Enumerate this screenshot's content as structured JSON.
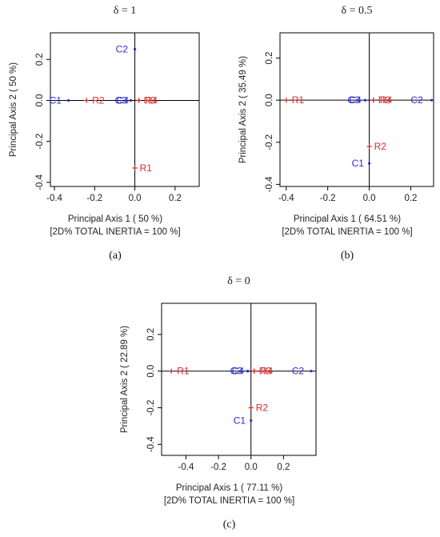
{
  "chart_data": [
    {
      "type": "scatter",
      "title": "δ = 1",
      "panel_label": "(a)",
      "xlabel": "Principal Axis 1 ( 50 %)",
      "xlabel2": "[2D% TOTAL INERTIA =  100 %]",
      "ylabel": "Principal Axis 2 ( 50 %)",
      "xlim": [
        -0.42,
        0.32
      ],
      "ylim": [
        -0.42,
        0.33
      ],
      "xticks": [
        -0.4,
        -0.2,
        0.0,
        0.2
      ],
      "xtick_labels": [
        "-0.4",
        "-0.2",
        "0.0",
        "0.2"
      ],
      "yticks": [
        -0.4,
        -0.2,
        0.0,
        0.2
      ],
      "ytick_labels": [
        "-0.4",
        "-0.2",
        "0.0",
        "0.2"
      ],
      "points": [
        {
          "label": "C1",
          "x": -0.33,
          "y": 0.0,
          "color": "#2b2bd6"
        },
        {
          "label": "C2",
          "x": 0.0,
          "y": 0.25,
          "color": "#2b2bd6"
        },
        {
          "label": "C3",
          "x": -0.02,
          "y": 0.0,
          "color": "#2b2bd6"
        },
        {
          "label": "C4",
          "x": -0.02,
          "y": 0.0,
          "color": "#2b2bd6"
        },
        {
          "label": "R1",
          "x": 0.0,
          "y": -0.33,
          "color": "#d62b2b"
        },
        {
          "label": "R2",
          "x": -0.24,
          "y": 0.0,
          "color": "#d62b2b"
        },
        {
          "label": "R3",
          "x": 0.02,
          "y": 0.0,
          "color": "#d62b2b"
        },
        {
          "label": "R4",
          "x": 0.02,
          "y": 0.0,
          "color": "#d62b2b"
        }
      ]
    },
    {
      "type": "scatter",
      "title": "δ = 0.5",
      "panel_label": "(b)",
      "xlabel": "Principal Axis 1 ( 64.51 %)",
      "xlabel2": "[2D% TOTAL INERTIA =  100 %]",
      "ylabel": "Principal Axis 2 ( 35.49 %)",
      "xlim": [
        -0.43,
        0.31
      ],
      "ylim": [
        -0.41,
        0.32
      ],
      "xticks": [
        -0.4,
        -0.2,
        0.0,
        0.2
      ],
      "xtick_labels": [
        "-0.4",
        "-0.2",
        "0.0",
        "0.2"
      ],
      "yticks": [
        -0.4,
        -0.2,
        0.0,
        0.2
      ],
      "ytick_labels": [
        "-0.4",
        "-0.2",
        "0.0",
        "0.2"
      ],
      "points": [
        {
          "label": "R1",
          "x": -0.4,
          "y": 0.0,
          "color": "#d62b2b"
        },
        {
          "label": "C2",
          "x": 0.3,
          "y": 0.0,
          "color": "#2b2bd6"
        },
        {
          "label": "C3",
          "x": -0.02,
          "y": 0.0,
          "color": "#2b2bd6"
        },
        {
          "label": "C4",
          "x": -0.02,
          "y": 0.0,
          "color": "#2b2bd6"
        },
        {
          "label": "R3",
          "x": 0.02,
          "y": 0.0,
          "color": "#d62b2b"
        },
        {
          "label": "R4",
          "x": 0.02,
          "y": 0.0,
          "color": "#d62b2b"
        },
        {
          "label": "R2",
          "x": 0.0,
          "y": -0.22,
          "color": "#d62b2b"
        },
        {
          "label": "C1",
          "x": 0.0,
          "y": -0.3,
          "color": "#2b2bd6"
        }
      ]
    },
    {
      "type": "scatter",
      "title": "δ = 0",
      "panel_label": "(c)",
      "xlabel": "Principal Axis 1 ( 77.11 %)",
      "xlabel2": "[2D% TOTAL INERTIA =  100 %]",
      "ylabel": "Principal Axis 2 ( 22.89 %)",
      "xlim": [
        -0.55,
        0.4
      ],
      "ylim": [
        -0.46,
        0.37
      ],
      "xticks": [
        -0.4,
        -0.2,
        0.0,
        0.2
      ],
      "xtick_labels": [
        "-0.4",
        "-0.2",
        "0.0",
        "0.2"
      ],
      "yticks": [
        -0.4,
        -0.2,
        0.0,
        0.2
      ],
      "ytick_labels": [
        "-0.4",
        "-0.2",
        "0.0",
        "0.2"
      ],
      "points": [
        {
          "label": "R1",
          "x": -0.49,
          "y": 0.0,
          "color": "#d62b2b"
        },
        {
          "label": "C3",
          "x": -0.02,
          "y": 0.0,
          "color": "#2b2bd6"
        },
        {
          "label": "C4",
          "x": -0.02,
          "y": 0.0,
          "color": "#2b2bd6"
        },
        {
          "label": "R3",
          "x": 0.02,
          "y": 0.0,
          "color": "#d62b2b"
        },
        {
          "label": "R4",
          "x": 0.02,
          "y": 0.0,
          "color": "#d62b2b"
        },
        {
          "label": "C2",
          "x": 0.37,
          "y": 0.0,
          "color": "#2b2bd6"
        },
        {
          "label": "R2",
          "x": 0.0,
          "y": -0.2,
          "color": "#d62b2b"
        },
        {
          "label": "C1",
          "x": 0.0,
          "y": -0.27,
          "color": "#2b2bd6"
        }
      ]
    }
  ]
}
